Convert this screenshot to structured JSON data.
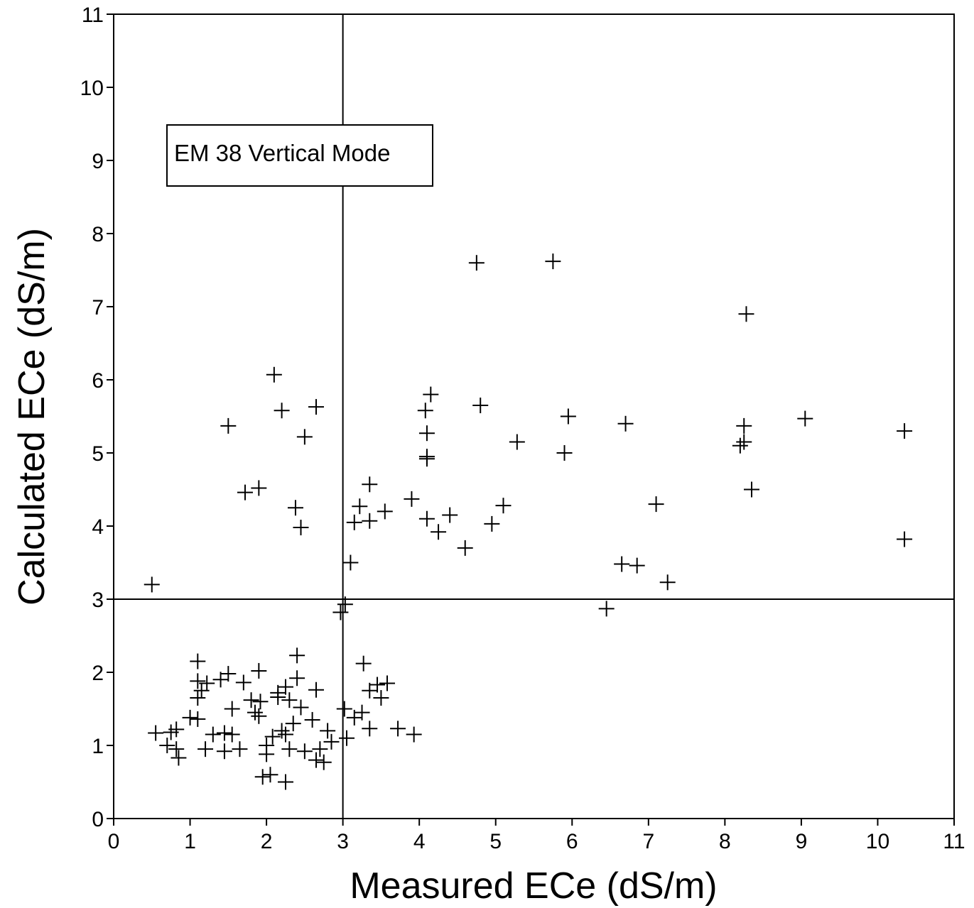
{
  "chart_data": {
    "type": "scatter",
    "xlabel": "Measured ECe (dS/m)",
    "ylabel": "Calculated ECe (dS/m)",
    "xlim": [
      0,
      11
    ],
    "ylim": [
      0,
      11
    ],
    "x_ticks": [
      0,
      1,
      2,
      3,
      4,
      5,
      6,
      7,
      8,
      9,
      10,
      11
    ],
    "y_ticks": [
      0,
      1,
      2,
      3,
      4,
      5,
      6,
      7,
      8,
      9,
      10,
      11
    ],
    "x_tick_labels": [
      "0",
      "1",
      "2",
      "3",
      "4",
      "5",
      "6",
      "7",
      "8",
      "9",
      "10",
      "11"
    ],
    "y_tick_labels": [
      "0",
      "1",
      "2",
      "3",
      "4",
      "5",
      "6",
      "7",
      "8",
      "9",
      "10",
      "11"
    ],
    "annotation": "EM 38 Vertical Mode",
    "reference_lines": {
      "x": 3,
      "y": 3
    },
    "marker": "+",
    "grid": false,
    "colors": {
      "marker": "#000000",
      "axes": "#000000"
    },
    "series": [
      {
        "points": [
          [
            4.75,
            7.6
          ],
          [
            5.75,
            7.62
          ],
          [
            8.28,
            6.9
          ],
          [
            2.1,
            6.07
          ],
          [
            2.2,
            5.58
          ],
          [
            2.65,
            5.63
          ],
          [
            1.5,
            5.37
          ],
          [
            2.5,
            5.22
          ],
          [
            4.15,
            5.8
          ],
          [
            4.08,
            5.58
          ],
          [
            4.1,
            5.27
          ],
          [
            4.1,
            4.95
          ],
          [
            4.1,
            4.92
          ],
          [
            4.8,
            5.65
          ],
          [
            5.95,
            5.5
          ],
          [
            6.7,
            5.4
          ],
          [
            9.05,
            5.47
          ],
          [
            10.35,
            5.3
          ],
          [
            5.28,
            5.15
          ],
          [
            5.9,
            5.0
          ],
          [
            8.25,
            5.37
          ],
          [
            8.25,
            5.15
          ],
          [
            8.2,
            5.1
          ],
          [
            1.72,
            4.46
          ],
          [
            1.9,
            4.52
          ],
          [
            2.38,
            4.25
          ],
          [
            2.45,
            3.98
          ],
          [
            3.35,
            4.57
          ],
          [
            3.22,
            4.27
          ],
          [
            3.15,
            4.05
          ],
          [
            3.35,
            4.07
          ],
          [
            3.55,
            4.2
          ],
          [
            3.9,
            4.37
          ],
          [
            4.1,
            4.1
          ],
          [
            4.4,
            4.15
          ],
          [
            4.25,
            3.92
          ],
          [
            4.6,
            3.7
          ],
          [
            4.95,
            4.03
          ],
          [
            5.1,
            4.28
          ],
          [
            7.1,
            4.3
          ],
          [
            8.35,
            4.5
          ],
          [
            10.35,
            3.82
          ],
          [
            3.1,
            3.5
          ],
          [
            6.65,
            3.48
          ],
          [
            6.85,
            3.46
          ],
          [
            7.25,
            3.23
          ],
          [
            0.5,
            3.2
          ],
          [
            6.45,
            2.87
          ],
          [
            2.97,
            2.82
          ],
          [
            3.03,
            2.93
          ],
          [
            1.1,
            2.15
          ],
          [
            2.4,
            2.23
          ],
          [
            3.27,
            2.12
          ],
          [
            1.9,
            2.02
          ],
          [
            1.5,
            1.98
          ],
          [
            1.1,
            1.88
          ],
          [
            1.22,
            1.85
          ],
          [
            1.4,
            1.9
          ],
          [
            1.7,
            1.86
          ],
          [
            2.15,
            1.72
          ],
          [
            2.25,
            1.8
          ],
          [
            2.4,
            1.92
          ],
          [
            2.65,
            1.76
          ],
          [
            3.45,
            1.83
          ],
          [
            3.58,
            1.85
          ],
          [
            3.35,
            1.75
          ],
          [
            3.5,
            1.65
          ],
          [
            1.15,
            1.75
          ],
          [
            1.1,
            1.65
          ],
          [
            1.8,
            1.62
          ],
          [
            1.92,
            1.6
          ],
          [
            2.15,
            1.66
          ],
          [
            2.3,
            1.62
          ],
          [
            2.45,
            1.52
          ],
          [
            1.55,
            1.5
          ],
          [
            1.85,
            1.45
          ],
          [
            3.02,
            1.5
          ],
          [
            3.25,
            1.45
          ],
          [
            2.6,
            1.35
          ],
          [
            3.15,
            1.38
          ],
          [
            2.35,
            1.3
          ],
          [
            1.0,
            1.38
          ],
          [
            1.1,
            1.36
          ],
          [
            1.3,
            1.15
          ],
          [
            1.45,
            1.17
          ],
          [
            1.55,
            1.15
          ],
          [
            1.9,
            1.4
          ],
          [
            2.08,
            1.12
          ],
          [
            2.2,
            1.2
          ],
          [
            2.25,
            1.15
          ],
          [
            2.8,
            1.2
          ],
          [
            3.35,
            1.23
          ],
          [
            3.72,
            1.23
          ],
          [
            3.93,
            1.15
          ],
          [
            0.55,
            1.17
          ],
          [
            0.75,
            1.18
          ],
          [
            0.82,
            1.22
          ],
          [
            0.7,
            1.0
          ],
          [
            0.82,
            0.95
          ],
          [
            0.85,
            0.83
          ],
          [
            1.2,
            0.95
          ],
          [
            1.45,
            0.92
          ],
          [
            1.65,
            0.95
          ],
          [
            2.0,
            1.0
          ],
          [
            2.0,
            0.88
          ],
          [
            2.3,
            0.95
          ],
          [
            2.5,
            0.92
          ],
          [
            2.7,
            0.95
          ],
          [
            2.65,
            0.8
          ],
          [
            2.75,
            0.77
          ],
          [
            2.85,
            1.05
          ],
          [
            3.05,
            1.1
          ],
          [
            1.95,
            0.57
          ],
          [
            2.05,
            0.6
          ],
          [
            2.25,
            0.5
          ]
        ]
      }
    ]
  }
}
